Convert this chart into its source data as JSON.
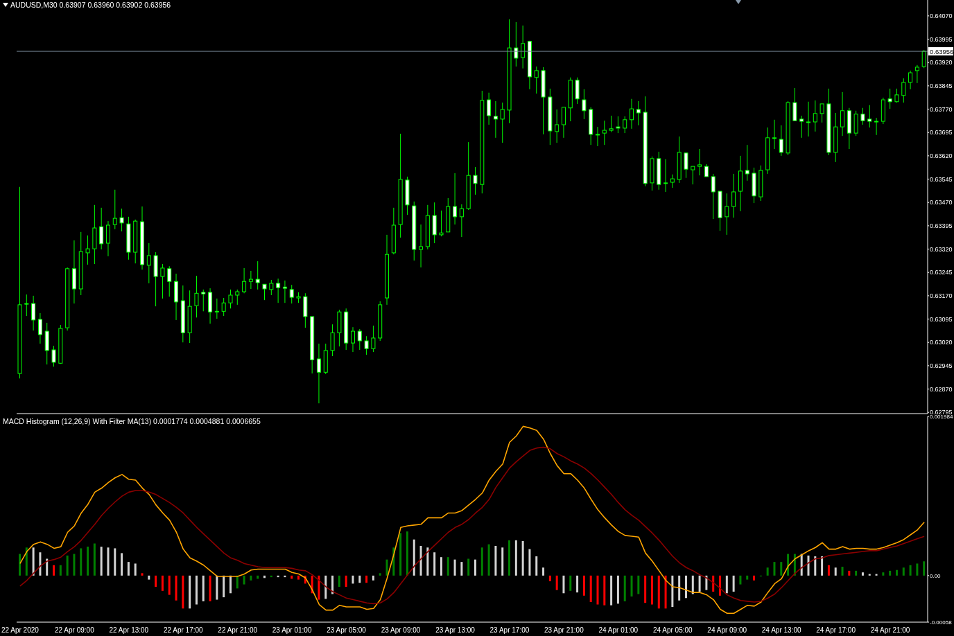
{
  "chart_data": [
    {
      "type": "candlestick",
      "title": "AUDUSD,M30 0.63907 0.63960 0.63902 0.63956",
      "color": "#00ff00",
      "tick_labels": "y",
      "categories": [
        null,
        null,
        null,
        null,
        null,
        null,
        null,
        null,
        null,
        null,
        null,
        null,
        null,
        null,
        null,
        null,
        null,
        null,
        null,
        null,
        null,
        null,
        null,
        null,
        null,
        null,
        null,
        null,
        null,
        null,
        null,
        null,
        null,
        null,
        null,
        null,
        null,
        null,
        null,
        null,
        null,
        null,
        null,
        null,
        null,
        null,
        null,
        null,
        null,
        null,
        null,
        null,
        null,
        null,
        null,
        null,
        null,
        null,
        null,
        null,
        null,
        null,
        null,
        null,
        null,
        null,
        null,
        null,
        null,
        null,
        null,
        null,
        null,
        null,
        null,
        null,
        null,
        null,
        null,
        null,
        null,
        null,
        null,
        null,
        null,
        null,
        null,
        null,
        null,
        null,
        null,
        null,
        null,
        null,
        null,
        null,
        null,
        null,
        null,
        null,
        null,
        null,
        null,
        null,
        null,
        null,
        null,
        null,
        null,
        null,
        null,
        null,
        null,
        null,
        null,
        null,
        null,
        null,
        null,
        null,
        null,
        null,
        null,
        null,
        null,
        null,
        null,
        null,
        null,
        null,
        null,
        null,
        null,
        null
      ],
      "ylim": [
        0.62791,
        0.64121
      ],
      "yticks": [
        {
          "value": 0.6407,
          "label": "0.64070"
        },
        {
          "value": 0.63995,
          "label": "0.63995"
        },
        {
          "value": 0.6392,
          "label": "0.63920"
        },
        {
          "value": 0.63845,
          "label": "0.63845"
        },
        {
          "value": 0.6377,
          "label": "0.63770"
        },
        {
          "value": 0.63695,
          "label": "0.63695"
        },
        {
          "value": 0.6362,
          "label": "0.63620"
        },
        {
          "value": 0.63545,
          "label": "0.63545"
        },
        {
          "value": 0.6347,
          "label": "0.63470"
        },
        {
          "value": 0.63395,
          "label": "0.63395"
        },
        {
          "value": 0.6332,
          "label": "0.63320"
        },
        {
          "value": 0.63245,
          "label": "0.63245"
        },
        {
          "value": 0.6317,
          "label": "0.63170"
        },
        {
          "value": 0.63095,
          "label": "0.63095"
        },
        {
          "value": 0.6302,
          "label": "0.63020"
        },
        {
          "value": 0.62945,
          "label": "0.62945"
        },
        {
          "value": 0.6287,
          "label": "0.62870"
        },
        {
          "value": 0.62795,
          "label": "0.62795"
        }
      ],
      "ref_lines": [
        {
          "axis": "y",
          "value": 0.63956,
          "label": "0.63956",
          "color": "#778899"
        }
      ],
      "ohlc": [
        [
          0.6292,
          0.6352,
          0.62904,
          0.63141
        ],
        [
          0.63145,
          0.63174,
          0.63105,
          0.63143
        ],
        [
          0.63145,
          0.6317,
          0.63058,
          0.63092
        ],
        [
          0.63094,
          0.63114,
          0.63016,
          0.63045
        ],
        [
          0.63056,
          0.63083,
          0.62949,
          0.62994
        ],
        [
          0.62996,
          0.63009,
          0.62942,
          0.62956
        ],
        [
          0.62953,
          0.63076,
          0.62951,
          0.63065
        ],
        [
          0.63067,
          0.63261,
          0.63058,
          0.63257
        ],
        [
          0.63257,
          0.63348,
          0.63145,
          0.63192
        ],
        [
          0.63192,
          0.63375,
          0.63172,
          0.63312
        ],
        [
          0.63308,
          0.63364,
          0.6327,
          0.63321
        ],
        [
          0.63321,
          0.63462,
          0.63272,
          0.63388
        ],
        [
          0.63392,
          0.63453,
          0.63319,
          0.63337
        ],
        [
          0.63339,
          0.6341,
          0.63297,
          0.63397
        ],
        [
          0.63399,
          0.63511,
          0.63384,
          0.63419
        ],
        [
          0.63421,
          0.6345,
          0.63377,
          0.63404
        ],
        [
          0.63401,
          0.63424,
          0.63286,
          0.6331
        ],
        [
          0.6331,
          0.63415,
          0.63274,
          0.6341
        ],
        [
          0.63408,
          0.63457,
          0.63254,
          0.6327
        ],
        [
          0.63268,
          0.63339,
          0.6321,
          0.63299
        ],
        [
          0.63299,
          0.6331,
          0.63136,
          0.63232
        ],
        [
          0.63232,
          0.63272,
          0.63161,
          0.63259
        ],
        [
          0.63257,
          0.63265,
          0.63167,
          0.63216
        ],
        [
          0.63216,
          0.63241,
          0.63092,
          0.6315
        ],
        [
          0.63154,
          0.63203,
          0.6302,
          0.63051
        ],
        [
          0.63051,
          0.63187,
          0.63018,
          0.63136
        ],
        [
          0.63138,
          0.63234,
          0.631,
          0.63178
        ],
        [
          0.63181,
          0.6319,
          0.6312,
          0.63176
        ],
        [
          0.63181,
          0.63194,
          0.6308,
          0.63118
        ],
        [
          0.6312,
          0.63161,
          0.63096,
          0.6312
        ],
        [
          0.6312,
          0.63163,
          0.63105,
          0.63147
        ],
        [
          0.63147,
          0.6319,
          0.63129,
          0.63172
        ],
        [
          0.63172,
          0.6319,
          0.63141,
          0.63183
        ],
        [
          0.63183,
          0.63259,
          0.63178,
          0.63216
        ],
        [
          0.63216,
          0.6325,
          0.63192,
          0.63223
        ],
        [
          0.63223,
          0.63281,
          0.6319,
          0.63212
        ],
        [
          0.63207,
          0.63207,
          0.63156,
          0.63192
        ],
        [
          0.6319,
          0.63221,
          0.63172,
          0.6321
        ],
        [
          0.6321,
          0.63225,
          0.63147,
          0.63196
        ],
        [
          0.63198,
          0.63219,
          0.63147,
          0.63194
        ],
        [
          0.6319,
          0.63205,
          0.63145,
          0.63165
        ],
        [
          0.63163,
          0.63181,
          0.63147,
          0.63167
        ],
        [
          0.63167,
          0.63178,
          0.63067,
          0.63103
        ],
        [
          0.63103,
          0.63103,
          0.6292,
          0.62964
        ],
        [
          0.62967,
          0.63016,
          0.62824,
          0.62924
        ],
        [
          0.62924,
          0.63016,
          0.62918,
          0.62994
        ],
        [
          0.62994,
          0.63078,
          0.62976,
          0.63051
        ],
        [
          0.63051,
          0.63125,
          0.63007,
          0.63118
        ],
        [
          0.63118,
          0.63129,
          0.62996,
          0.63018
        ],
        [
          0.63018,
          0.63069,
          0.62989,
          0.63056
        ],
        [
          0.63056,
          0.63063,
          0.62996,
          0.63025
        ],
        [
          0.63025,
          0.6304,
          0.6298,
          0.63
        ],
        [
          0.63,
          0.63074,
          0.62989,
          0.63034
        ],
        [
          0.63034,
          0.63152,
          0.63025,
          0.63141
        ],
        [
          0.63163,
          0.63366,
          0.63141,
          0.63303
        ],
        [
          0.63308,
          0.63453,
          0.63303,
          0.63397
        ],
        [
          0.63399,
          0.63691,
          0.63357,
          0.63544
        ],
        [
          0.63542,
          0.63553,
          0.6343,
          0.63462
        ],
        [
          0.63459,
          0.63473,
          0.63283,
          0.63319
        ],
        [
          0.63319,
          0.63399,
          0.63261,
          0.63328
        ],
        [
          0.63328,
          0.63462,
          0.63319,
          0.63428
        ],
        [
          0.63428,
          0.6347,
          0.63339,
          0.63366
        ],
        [
          0.63366,
          0.63444,
          0.63361,
          0.63372
        ],
        [
          0.63375,
          0.63484,
          0.63375,
          0.63457
        ],
        [
          0.63457,
          0.63564,
          0.63399,
          0.63424
        ],
        [
          0.63424,
          0.63464,
          0.63359,
          0.6345
        ],
        [
          0.6345,
          0.63664,
          0.63446,
          0.63557
        ],
        [
          0.63557,
          0.63584,
          0.63495,
          0.63531
        ],
        [
          0.63528,
          0.63829,
          0.63499,
          0.63798
        ],
        [
          0.638,
          0.63823,
          0.6372,
          0.63749
        ],
        [
          0.63747,
          0.63796,
          0.63678,
          0.63738
        ],
        [
          0.63738,
          0.63791,
          0.63662,
          0.63769
        ],
        [
          0.63767,
          0.64059,
          0.63725,
          0.63967
        ],
        [
          0.63967,
          0.6405,
          0.63907,
          0.63934
        ],
        [
          0.63936,
          0.64039,
          0.63901,
          0.63981
        ],
        [
          0.63988,
          0.6399,
          0.63834,
          0.63874
        ],
        [
          0.63872,
          0.63907,
          0.6382,
          0.63894
        ],
        [
          0.63894,
          0.63905,
          0.63689,
          0.63809
        ],
        [
          0.63809,
          0.63836,
          0.63655,
          0.637
        ],
        [
          0.63698,
          0.63769,
          0.63662,
          0.6372
        ],
        [
          0.6372,
          0.63776,
          0.63678,
          0.63776
        ],
        [
          0.63774,
          0.63872,
          0.63731,
          0.63863
        ],
        [
          0.63863,
          0.63872,
          0.63787,
          0.63803
        ],
        [
          0.638,
          0.63834,
          0.63738,
          0.63765
        ],
        [
          0.63769,
          0.63776,
          0.63655,
          0.63689
        ],
        [
          0.63689,
          0.63713,
          0.63651,
          0.63689
        ],
        [
          0.63693,
          0.63733,
          0.63655,
          0.63702
        ],
        [
          0.63702,
          0.63749,
          0.63696,
          0.63707
        ],
        [
          0.63713,
          0.63747,
          0.63693,
          0.63709
        ],
        [
          0.63709,
          0.63747,
          0.63693,
          0.63736
        ],
        [
          0.63736,
          0.63803,
          0.63707,
          0.63771
        ],
        [
          0.63769,
          0.63796,
          0.63718,
          0.63758
        ],
        [
          0.6376,
          0.63811,
          0.63522,
          0.63531
        ],
        [
          0.63533,
          0.63618,
          0.63508,
          0.63611
        ],
        [
          0.63611,
          0.63633,
          0.63511,
          0.63528
        ],
        [
          0.63533,
          0.63609,
          0.63504,
          0.63533
        ],
        [
          0.63535,
          0.6356,
          0.63517,
          0.63546
        ],
        [
          0.63544,
          0.63682,
          0.63533,
          0.63631
        ],
        [
          0.63629,
          0.63631,
          0.63549,
          0.63577
        ],
        [
          0.63575,
          0.63586,
          0.63528,
          0.63586
        ],
        [
          0.63586,
          0.63642,
          0.63557,
          0.63591
        ],
        [
          0.63586,
          0.63593,
          0.63553,
          0.63553
        ],
        [
          0.63553,
          0.63562,
          0.63417,
          0.63504
        ],
        [
          0.63506,
          0.63506,
          0.63379,
          0.63421
        ],
        [
          0.63424,
          0.63499,
          0.63366,
          0.63457
        ],
        [
          0.63457,
          0.63562,
          0.63421,
          0.63504
        ],
        [
          0.63506,
          0.6362,
          0.63442,
          0.63571
        ],
        [
          0.63573,
          0.63655,
          0.6354,
          0.63562
        ],
        [
          0.63564,
          0.63582,
          0.63468,
          0.63491
        ],
        [
          0.63488,
          0.63589,
          0.63475,
          0.63573
        ],
        [
          0.63575,
          0.63711,
          0.63562,
          0.63678
        ],
        [
          0.63678,
          0.63736,
          0.63642,
          0.63678
        ],
        [
          0.63673,
          0.63718,
          0.6362,
          0.63631
        ],
        [
          0.63629,
          0.63796,
          0.63622,
          0.63791
        ],
        [
          0.63791,
          0.63838,
          0.63733,
          0.63733
        ],
        [
          0.63738,
          0.63749,
          0.63678,
          0.63731
        ],
        [
          0.63729,
          0.63794,
          0.63682,
          0.63729
        ],
        [
          0.63729,
          0.63798,
          0.63698,
          0.63756
        ],
        [
          0.63756,
          0.63787,
          0.63727,
          0.63787
        ],
        [
          0.63787,
          0.63836,
          0.63622,
          0.63631
        ],
        [
          0.63631,
          0.63758,
          0.636,
          0.63713
        ],
        [
          0.63713,
          0.63825,
          0.63684,
          0.63765
        ],
        [
          0.63765,
          0.63774,
          0.63642,
          0.63693
        ],
        [
          0.63693,
          0.63765,
          0.63684,
          0.63754
        ],
        [
          0.63754,
          0.63774,
          0.6372,
          0.63733
        ],
        [
          0.63738,
          0.63783,
          0.63711,
          0.63731
        ],
        [
          0.63731,
          0.63742,
          0.63687,
          0.63731
        ],
        [
          0.63731,
          0.63807,
          0.63722,
          0.638
        ],
        [
          0.63803,
          0.63836,
          0.63771,
          0.63794
        ],
        [
          0.63794,
          0.63836,
          0.63791,
          0.63816
        ],
        [
          0.63814,
          0.63869,
          0.63791,
          0.63856
        ],
        [
          0.63856,
          0.63894,
          0.63834,
          0.63887
        ],
        [
          0.63894,
          0.63912,
          0.63854,
          0.63905
        ],
        [
          0.63907,
          0.6396,
          0.63902,
          0.63956
        ]
      ]
    },
    {
      "type": "bar",
      "title": "MACD Histogram (12,26,9) With Filter MA(13) 0.0001774 0.0004881 0.0006655",
      "categories": [
        "22 Apr 2020",
        null,
        null,
        null,
        null,
        null,
        null,
        null,
        "22 Apr 09:00",
        null,
        null,
        null,
        null,
        null,
        null,
        null,
        "22 Apr 13:00",
        null,
        null,
        null,
        null,
        null,
        null,
        null,
        "22 Apr 17:00",
        null,
        null,
        null,
        null,
        null,
        null,
        null,
        "22 Apr 21:00",
        null,
        null,
        null,
        null,
        null,
        null,
        null,
        "23 Apr 01:00",
        null,
        null,
        null,
        null,
        null,
        null,
        null,
        "23 Apr 05:00",
        null,
        null,
        null,
        null,
        null,
        null,
        null,
        "23 Apr 09:00",
        null,
        null,
        null,
        null,
        null,
        null,
        null,
        "23 Apr 13:00",
        null,
        null,
        null,
        null,
        null,
        null,
        null,
        "23 Apr 17:00",
        null,
        null,
        null,
        null,
        null,
        null,
        null,
        "23 Apr 21:00",
        null,
        null,
        null,
        null,
        null,
        null,
        null,
        "24 Apr 01:00",
        null,
        null,
        null,
        null,
        null,
        null,
        null,
        "24 Apr 05:00",
        null,
        null,
        null,
        null,
        null,
        null,
        null,
        "24 Apr 09:00",
        null,
        null,
        null,
        null,
        null,
        null,
        null,
        "24 Apr 13:00",
        null,
        null,
        null,
        null,
        null,
        null,
        null,
        "24 Apr 17:00",
        null,
        null,
        null,
        null,
        null,
        null,
        null,
        "24 Apr 21:00",
        null,
        null,
        null,
        null,
        null
      ],
      "ylim": [
        -0.00058,
        0.001984
      ],
      "yticks": [
        {
          "value": 0.001984,
          "label": "0.001984"
        },
        {
          "value": 0,
          "label": "0.00"
        },
        {
          "value": -0.00058,
          "label": "-0.00058"
        }
      ],
      "series": [
        {
          "type": "bar",
          "colors": [
            "#008000",
            "#008000",
            "#d3d3d3",
            "#d3d3d3",
            "#d3d3d3",
            "#ff0000",
            "#008000",
            "#008000",
            "#008000",
            "#008000",
            "#008000",
            "#008000",
            "#d3d3d3",
            "#d3d3d3",
            "#d3d3d3",
            "#d3d3d3",
            "#d3d3d3",
            "#d3d3d3",
            "#ff0000",
            "#d3d3d3",
            "#ff0000",
            "#ff0000",
            "#ff0000",
            "#ff0000",
            "#ff0000",
            "#d3d3d3",
            "#d3d3d3",
            "#d3d3d3",
            "#ff0000",
            "#d3d3d3",
            "#d3d3d3",
            "#d3d3d3",
            "#008000",
            "#008000",
            "#008000",
            "#008000",
            "#d3d3d3",
            "#008000",
            "#d3d3d3",
            "#d3d3d3",
            "#ff0000",
            "#ff0000",
            "#ff0000",
            "#ff0000",
            "#ff0000",
            "#d3d3d3",
            "#d3d3d3",
            "#008000",
            "#ff0000",
            "#d3d3d3",
            "#d3d3d3",
            "#ff0000",
            "#d3d3d3",
            "#008000",
            "#008000",
            "#008000",
            "#008000",
            "#008000",
            "#d3d3d3",
            "#d3d3d3",
            "#d3d3d3",
            "#d3d3d3",
            "#d3d3d3",
            "#008000",
            "#d3d3d3",
            "#d3d3d3",
            "#008000",
            "#d3d3d3",
            "#008000",
            "#008000",
            "#d3d3d3",
            "#d3d3d3",
            "#008000",
            "#d3d3d3",
            "#d3d3d3",
            "#d3d3d3",
            "#d3d3d3",
            "#d3d3d3",
            "#ff0000",
            "#ff0000",
            "#d3d3d3",
            "#008000",
            "#d3d3d3",
            "#ff0000",
            "#ff0000",
            "#ff0000",
            "#ff0000",
            "#d3d3d3",
            "#d3d3d3",
            "#008000",
            "#008000",
            "#008000",
            "#ff0000",
            "#ff0000",
            "#ff0000",
            "#ff0000",
            "#d3d3d3",
            "#d3d3d3",
            "#d3d3d3",
            "#d3d3d3",
            "#d3d3d3",
            "#d3d3d3",
            "#ff0000",
            "#ff0000",
            "#d3d3d3",
            "#d3d3d3",
            "#008000",
            "#008000",
            "#ff0000",
            "#008000",
            "#008000",
            "#008000",
            "#008000",
            "#008000",
            "#008000",
            "#d3d3d3",
            "#d3d3d3",
            "#d3d3d3",
            "#d3d3d3",
            "#ff0000",
            "#d3d3d3",
            "#008000",
            "#ff0000",
            "#008000",
            "#d3d3d3",
            "#d3d3d3",
            "#d3d3d3",
            "#008000",
            "#008000",
            "#008000",
            "#008000",
            "#008000",
            "#008000",
            "#008000"
          ],
          "values": [
            0.00027,
            0.00035,
            0.00035,
            0.00029,
            0.00021,
            0.00013,
            0.00013,
            0.00025,
            0.00027,
            0.00034,
            0.00036,
            0.0004,
            0.00036,
            0.00035,
            0.00034,
            0.00028,
            0.00017,
            0.00015,
            3e-05,
            -5e-05,
            -0.00014,
            -0.00019,
            -0.00024,
            -0.00031,
            -0.00041,
            -0.00041,
            -0.00036,
            -0.00032,
            -0.00032,
            -0.0003,
            -0.00027,
            -0.00022,
            -0.00016,
            -0.00011,
            -6e-05,
            -4e-05,
            -3e-05,
            -2e-05,
            -2e-05,
            -2e-05,
            -4e-05,
            -5e-05,
            -0.0001,
            -0.00022,
            -0.0003,
            -0.00029,
            -0.00023,
            -0.00014,
            -0.00014,
            -0.0001,
            -9e-05,
            -9e-05,
            -6e-05,
            3e-05,
            0.0002,
            0.00035,
            0.00053,
            0.00055,
            0.00045,
            0.00037,
            0.00035,
            0.00029,
            0.00023,
            0.00023,
            0.0002,
            0.00017,
            0.00021,
            0.0002,
            0.00035,
            0.00039,
            0.00037,
            0.00035,
            0.00044,
            0.00044,
            0.00043,
            0.00033,
            0.00024,
            0.0001,
            -7e-05,
            -0.00018,
            -0.00022,
            -0.00019,
            -0.00021,
            -0.00025,
            -0.00033,
            -0.00036,
            -0.00037,
            -0.00037,
            -0.00035,
            -0.00032,
            -0.00026,
            -0.00023,
            -0.00034,
            -0.00036,
            -0.00041,
            -0.00041,
            -0.00039,
            -0.00031,
            -0.00028,
            -0.00023,
            -0.0002,
            -0.00018,
            -0.0002,
            -0.00025,
            -0.00022,
            -0.0002,
            -0.00011,
            -5e-05,
            -6e-05,
            -1e-05,
            0.0001,
            0.00017,
            0.00017,
            0.00027,
            0.00027,
            0.00027,
            0.00025,
            0.00024,
            0.00024,
            0.00013,
            0.0001,
            0.00011,
            6e-05,
            6e-05,
            4e-05,
            2e-05,
            2e-05,
            4e-05,
            6e-05,
            7e-05,
            0.0001,
            0.00013,
            0.00015,
            0.0001774
          ]
        },
        {
          "type": "line",
          "color": "#ffa500",
          "values": [
            0.00015,
            0.0003,
            0.00039,
            0.00042,
            0.00039,
            0.00034,
            0.00036,
            0.00054,
            0.00062,
            0.00078,
            0.00089,
            0.00104,
            0.00109,
            0.00116,
            0.00122,
            0.00126,
            0.0012,
            0.00119,
            0.00109,
            0.00101,
            0.00088,
            0.00078,
            0.00069,
            0.00054,
            0.00033,
            0.00022,
            0.00018,
            0.00013,
            6e-05,
            -1e-05,
            -1e-05,
            -1e-05,
            -1e-05,
            2e-05,
            7e-05,
            8e-05,
            8e-05,
            8e-05,
            8e-05,
            8e-05,
            4e-05,
            2e-05,
            -3e-05,
            -0.00018,
            -0.00036,
            -0.00043,
            -0.00043,
            -0.00037,
            -0.00039,
            -0.00039,
            -0.00039,
            -0.00042,
            -0.00041,
            -0.0003,
            -3e-05,
            0.00027,
            0.0006,
            0.00062,
            0.00063,
            0.00064,
            0.00072,
            0.00072,
            0.00072,
            0.00078,
            0.00078,
            0.00081,
            0.00088,
            0.00095,
            0.00103,
            0.00119,
            0.0013,
            0.00139,
            0.00166,
            0.00174,
            0.00186,
            0.00184,
            0.00181,
            0.0017,
            0.00152,
            0.00137,
            0.00127,
            0.00127,
            0.00119,
            0.00109,
            0.00095,
            0.00082,
            0.00072,
            0.00063,
            0.00055,
            0.0005,
            0.00049,
            0.00048,
            0.00028,
            0.00018,
            6e-05,
            -6e-05,
            -0.00014,
            -0.00015,
            -0.00018,
            -0.00021,
            -0.00021,
            -0.00024,
            -0.0003,
            -0.00042,
            -0.00047,
            -0.00047,
            -0.00042,
            -0.00037,
            -0.00038,
            -0.00033,
            -0.00021,
            -0.0001,
            -4e-05,
            0.00012,
            0.00021,
            0.00026,
            0.00031,
            0.00035,
            0.00041,
            0.00033,
            0.00033,
            0.00036,
            0.00033,
            0.00034,
            0.00034,
            0.00033,
            0.00033,
            0.00035,
            0.00038,
            0.00041,
            0.00045,
            0.00051,
            0.00057,
            0.0006655
          ]
        },
        {
          "type": "line",
          "color": "#8b0000",
          "values": [
            -0.00013,
            -6e-05,
            3e-05,
            0.00012,
            0.00018,
            0.0002,
            0.00023,
            0.0003,
            0.00036,
            0.00044,
            0.00054,
            0.00064,
            0.00075,
            0.00084,
            0.00092,
            0.00099,
            0.00104,
            0.00106,
            0.00106,
            0.00104,
            0.00101,
            0.00096,
            0.00091,
            0.00085,
            0.00078,
            0.00069,
            0.0006,
            0.00052,
            0.00044,
            0.00036,
            0.00028,
            0.00022,
            0.00019,
            0.00015,
            0.00013,
            0.00011,
            0.0001,
            0.0001,
            0.0001,
            0.0001,
            9e-05,
            7e-05,
            6e-05,
            1e-05,
            -6e-05,
            -0.00014,
            -0.0002,
            -0.00024,
            -0.00028,
            -0.0003,
            -0.00032,
            -0.00034,
            -0.00035,
            -0.00034,
            -0.00029,
            -0.00021,
            -0.0001,
            1e-05,
            0.00012,
            0.00021,
            0.0003,
            0.00038,
            0.00046,
            0.00054,
            0.0006,
            0.00064,
            0.0007,
            0.00078,
            0.00085,
            0.00095,
            0.0011,
            0.00122,
            0.00134,
            0.00142,
            0.00149,
            0.00156,
            0.00159,
            0.0016,
            0.00158,
            0.00152,
            0.00148,
            0.00143,
            0.00139,
            0.00134,
            0.00127,
            0.00119,
            0.0011,
            0.00101,
            0.00091,
            0.00082,
            0.00075,
            0.00069,
            0.00061,
            0.00053,
            0.00044,
            0.00034,
            0.00024,
            0.00016,
            0.0001,
            6e-05,
            1e-05,
            -3e-05,
            -9e-05,
            -0.00016,
            -0.00024,
            -0.00028,
            -0.00031,
            -0.00032,
            -0.00033,
            -0.00032,
            -0.00028,
            -0.00023,
            -0.00015,
            -6e-05,
            3e-05,
            0.0001,
            0.00016,
            0.00021,
            0.00022,
            0.00025,
            0.00026,
            0.00027,
            0.00028,
            0.00029,
            0.0003,
            0.00031,
            0.00031,
            0.00033,
            0.00035,
            0.00037,
            0.0004,
            0.00043,
            0.00046,
            0.0004881
          ]
        }
      ]
    }
  ]
}
